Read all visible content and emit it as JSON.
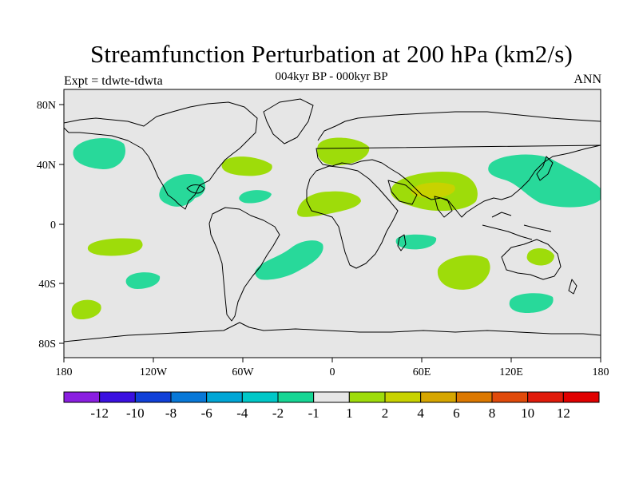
{
  "title": "Streamfunction Perturbation at 200 hPa (km2/s)",
  "subtitle": "004kyr BP - 000kyr BP",
  "experiment": "Expt = tdwte-tdwta",
  "season": "ANN",
  "map": {
    "lon_labels": [
      "180",
      "120W",
      "60W",
      "0",
      "60E",
      "120E",
      "180"
    ],
    "lat_labels": [
      "80N",
      "40N",
      "0",
      "40S",
      "80S"
    ],
    "background": "#e6e6e6"
  },
  "colorbar": {
    "labels": [
      "-12",
      "-10",
      "-8",
      "-6",
      "-4",
      "-2",
      "-1",
      "1",
      "2",
      "4",
      "6",
      "8",
      "10",
      "12"
    ],
    "colors": [
      "#8a1ee0",
      "#3a10e0",
      "#1040d8",
      "#0878d8",
      "#00a6d6",
      "#00c8c8",
      "#16d694",
      "#e6e6e6",
      "#9edc0a",
      "#c8d200",
      "#d6a600",
      "#dc7800",
      "#e04a0a",
      "#e01a0a",
      "#e00000"
    ]
  },
  "contours": [
    {
      "name": "nw-pacific-negative",
      "level": "-1",
      "color": "#28d99a"
    },
    {
      "name": "north-america-negative",
      "level": "-1",
      "color": "#28d99a"
    },
    {
      "name": "north-atlantic-positive",
      "level": "1",
      "color": "#9edc0a"
    },
    {
      "name": "tropical-atlantic-negative",
      "level": "-1",
      "color": "#28d99a"
    },
    {
      "name": "europe-positive",
      "level": "1",
      "color": "#9edc0a"
    },
    {
      "name": "africa-positive",
      "level": "1",
      "color": "#9edc0a"
    },
    {
      "name": "asia-positive",
      "level": "1",
      "color": "#9edc0a"
    },
    {
      "name": "asia-positive-core",
      "level": "2",
      "color": "#c8d200"
    },
    {
      "name": "nw-pacific-east-asia-negative",
      "level": "-1",
      "color": "#28d99a"
    },
    {
      "name": "s-pacific-positive",
      "level": "1",
      "color": "#9edc0a"
    },
    {
      "name": "s-pacific-negative",
      "level": "-1",
      "color": "#28d99a"
    },
    {
      "name": "far-south-pacific-positive",
      "level": "1",
      "color": "#9edc0a"
    },
    {
      "name": "south-atlantic-negative",
      "level": "-1",
      "color": "#28d99a"
    },
    {
      "name": "madagascar-negative",
      "level": "-1",
      "color": "#28d99a"
    },
    {
      "name": "indian-ocean-positive",
      "level": "1",
      "color": "#9edc0a"
    },
    {
      "name": "australia-positive",
      "level": "1",
      "color": "#9edc0a"
    },
    {
      "name": "southern-ocean-negative",
      "level": "-1",
      "color": "#28d99a"
    }
  ]
}
